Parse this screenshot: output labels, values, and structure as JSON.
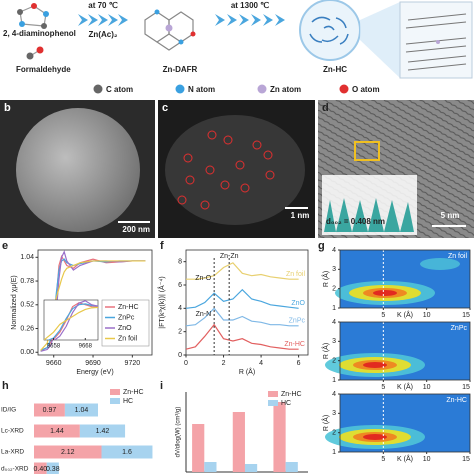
{
  "scheme": {
    "reactants": [
      "2, 4-diaminophenol",
      "Formaldehyde"
    ],
    "step1": {
      "temperature": "at 70 ℃",
      "reagent": "Zn(Ac)₂"
    },
    "intermediate": "Zn-DAFR",
    "step2": {
      "temperature": "at 1300 ℃"
    },
    "product": "Zn-HC"
  },
  "atom_legend": [
    {
      "label": "C atom",
      "color": "#666666"
    },
    {
      "label": "N atom",
      "color": "#3aa0e0"
    },
    {
      "label": "Zn atom",
      "color": "#b9a6d6"
    },
    {
      "label": "O atom",
      "color": "#e03030"
    }
  ],
  "micrographs": [
    {
      "panel": "b",
      "scale_bar": "200 nm"
    },
    {
      "panel": "c",
      "scale_bar": "1 nm"
    },
    {
      "panel": "d",
      "scale_bar": "5 nm",
      "annotation": "d₀₀₂ = 0.408 nm"
    }
  ],
  "chart_data": [
    {
      "panel": "e",
      "type": "line",
      "xlabel": "Energy (eV)",
      "ylabel": "Normalized χμ(E)",
      "x": [
        9650,
        9655,
        9658,
        9660,
        9662,
        9664,
        9666,
        9668,
        9670,
        9675,
        9680,
        9690,
        9700,
        9710,
        9720,
        9730
      ],
      "xlim": [
        9648,
        9735
      ],
      "ylim": [
        -0.03,
        1.12
      ],
      "xticks": [
        9660,
        9690,
        9720
      ],
      "yticks": [
        {
          "value": 0,
          "label": "0.00"
        },
        0.26,
        0.52,
        0.78,
        1.04
      ],
      "series": [
        {
          "name": "Zn-HC",
          "color": "#e8737d",
          "values": [
            0.02,
            0.05,
            0.12,
            0.3,
            0.6,
            0.95,
            1.05,
            1.0,
            0.95,
            0.92,
            0.98,
            1.02,
            0.98,
            0.99,
            1.0,
            1.0
          ]
        },
        {
          "name": "ZnPc",
          "color": "#4aa6de",
          "values": [
            0.02,
            0.05,
            0.15,
            0.35,
            0.65,
            0.9,
            1.0,
            1.02,
            0.98,
            0.95,
            0.97,
            1.0,
            0.99,
            1.0,
            1.0,
            1.0
          ]
        },
        {
          "name": "ZnO",
          "color": "#9a6fc9",
          "values": [
            0.01,
            0.03,
            0.08,
            0.2,
            0.45,
            0.8,
            1.04,
            1.1,
            1.0,
            0.9,
            0.95,
            1.0,
            1.0,
            0.99,
            1.0,
            1.0
          ]
        },
        {
          "name": "Zn foil",
          "color": "#e8c84a",
          "values": [
            0.02,
            0.1,
            0.3,
            0.5,
            0.6,
            0.7,
            0.8,
            0.88,
            0.92,
            0.95,
            0.98,
            1.0,
            1.0,
            1.0,
            1.0,
            1.0
          ]
        }
      ],
      "inset": {
        "xlim": [
          9655,
          9672
        ],
        "ylim": [
          0.1,
          1.12
        ],
        "xticks": [
          9658,
          9668
        ]
      }
    },
    {
      "panel": "f",
      "type": "line",
      "xlabel": "R (Å)",
      "ylabel": "|FT(k³χ(k))| (Å⁻⁴)",
      "x": [
        0,
        0.5,
        1,
        1.5,
        2,
        2.5,
        3,
        3.5,
        4,
        4.5,
        5,
        5.5,
        6
      ],
      "xlim": [
        0,
        6.5
      ],
      "ylim": [
        0,
        9
      ],
      "xticks": [
        0,
        2,
        4,
        6
      ],
      "yticks": [
        0,
        2,
        4,
        6,
        8
      ],
      "series": [
        {
          "name": "Zn foil",
          "color": "#e8d070",
          "values": [
            6.5,
            6.5,
            6.6,
            6.8,
            7.5,
            7.9,
            7.0,
            6.8,
            6.9,
            6.7,
            6.6,
            6.5,
            6.5
          ]
        },
        {
          "name": "ZnO",
          "color": "#4aa6de",
          "values": [
            4.0,
            4.1,
            4.5,
            5.3,
            4.6,
            4.8,
            5.6,
            4.8,
            4.6,
            4.3,
            4.2,
            4.1,
            4.0
          ]
        },
        {
          "name": "ZnPc",
          "color": "#7fb8e6",
          "values": [
            2.5,
            2.6,
            3.2,
            4.0,
            3.0,
            3.0,
            3.3,
            2.9,
            2.8,
            2.6,
            2.6,
            2.5,
            2.5
          ]
        },
        {
          "name": "Zn-HC",
          "color": "#e26060",
          "values": [
            0.5,
            0.7,
            1.6,
            2.6,
            1.4,
            1.2,
            1.4,
            1.0,
            0.9,
            0.7,
            0.6,
            0.5,
            0.5
          ]
        }
      ],
      "annotations": [
        {
          "text": "Zn-Zn",
          "x": 2.3
        },
        {
          "text": "Zn-O",
          "x": 1.5
        },
        {
          "text": "Zn-N",
          "x": 1.5
        }
      ]
    },
    {
      "panel": "g",
      "type": "wavelet",
      "xlabel": "K (Å)",
      "ylabel": "R (Å)",
      "xlim": [
        0,
        15
      ],
      "ylim": [
        1,
        4
      ],
      "xticks": [
        5,
        10,
        15
      ],
      "yticks": [
        1,
        2,
        3,
        4
      ],
      "panels": [
        "Zn foil",
        "ZnPc",
        "Zn-HC"
      ]
    },
    {
      "panel": "h",
      "type": "stacked_barh",
      "categories": [
        "ID/IG",
        "Lc-XRD",
        "La-XRD",
        "d₀₀₂-XRD"
      ],
      "xlim": [
        0,
        3.8
      ],
      "series": [
        {
          "name": "Zn-HC",
          "color": "#f4a3a8",
          "values": [
            0.97,
            1.44,
            2.12,
            0.4
          ],
          "value_labels": [
            "0.97",
            "1.44",
            "2.12",
            "0.40"
          ]
        },
        {
          "name": "HC",
          "color": "#a7d3ef",
          "values": [
            1.04,
            1.42,
            1.6,
            0.38
          ]
        }
      ]
    },
    {
      "panel": "i",
      "type": "bar",
      "ylabel": "dV/dlog(W) (cm³/g)",
      "categories": [
        null,
        null,
        null
      ],
      "ylim": [
        0,
        0.4
      ],
      "series": [
        {
          "name": "Zn-HC",
          "color": "#f4a3a8",
          "values": [
            0.24,
            0.3,
            0.35
          ]
        },
        {
          "name": "HC",
          "color": "#a7d3ef",
          "values": [
            0.05,
            0.04,
            0.05
          ]
        }
      ]
    }
  ]
}
